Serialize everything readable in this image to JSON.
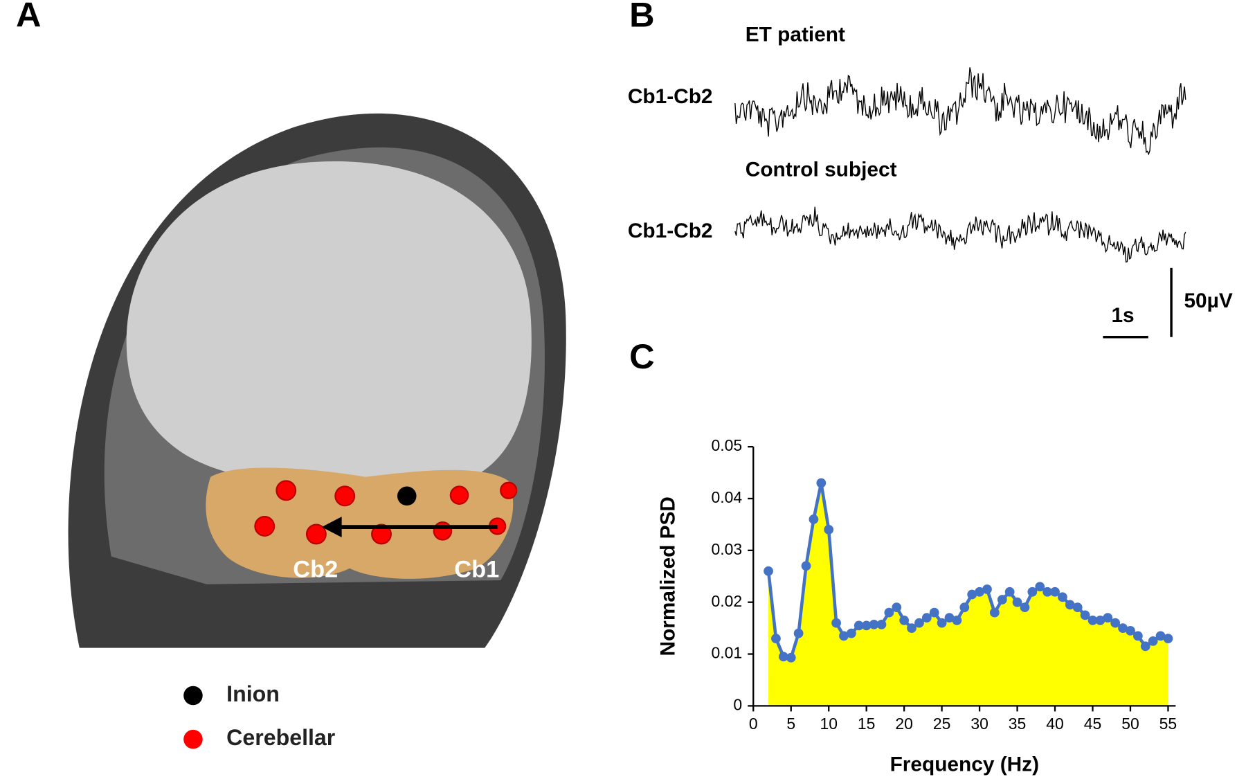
{
  "panel_labels": [
    "A",
    "B",
    "C"
  ],
  "head": {
    "electrode_labels": [
      "Cb2",
      "Cb1"
    ],
    "legend": [
      "Inion",
      "Cerebellar"
    ]
  },
  "traces": {
    "rows": [
      {
        "title": "ET patient",
        "channel": "Cb1-Cb2"
      },
      {
        "title": "Control subject",
        "channel": "Cb1-Cb2"
      }
    ],
    "time_scale": "1s",
    "amplitude_scale": "50µV"
  },
  "chart_data": {
    "type": "line",
    "xlabel": "Frequency (Hz)",
    "ylabel": "Normalized PSD",
    "x": [
      2,
      3,
      4,
      5,
      6,
      7,
      8,
      9,
      10,
      11,
      12,
      13,
      14,
      15,
      16,
      17,
      18,
      19,
      20,
      21,
      22,
      23,
      24,
      25,
      26,
      27,
      28,
      29,
      30,
      31,
      32,
      33,
      34,
      35,
      36,
      37,
      38,
      39,
      40,
      41,
      42,
      43,
      44,
      45,
      46,
      47,
      48,
      49,
      50,
      51,
      52,
      53,
      54,
      55
    ],
    "values": [
      0.026,
      0.013,
      0.0095,
      0.0093,
      0.014,
      0.027,
      0.036,
      0.043,
      0.034,
      0.016,
      0.0135,
      0.014,
      0.0155,
      0.0155,
      0.0157,
      0.0157,
      0.018,
      0.019,
      0.0165,
      0.015,
      0.016,
      0.017,
      0.018,
      0.016,
      0.017,
      0.0165,
      0.019,
      0.0215,
      0.022,
      0.0225,
      0.018,
      0.0205,
      0.022,
      0.02,
      0.019,
      0.022,
      0.023,
      0.022,
      0.022,
      0.021,
      0.0195,
      0.019,
      0.0175,
      0.0165,
      0.0165,
      0.017,
      0.016,
      0.015,
      0.0145,
      0.0135,
      0.0115,
      0.0125,
      0.0135,
      0.013
    ],
    "color": "#4472c4",
    "fill_color": "#ffff00",
    "xlim": [
      0,
      56
    ],
    "ylim": [
      0,
      0.05
    ],
    "xticks": [
      0,
      5,
      10,
      15,
      20,
      25,
      30,
      35,
      40,
      45,
      50,
      55
    ],
    "yticks": [
      0,
      0.01,
      0.02,
      0.03,
      0.04,
      0.05
    ]
  }
}
